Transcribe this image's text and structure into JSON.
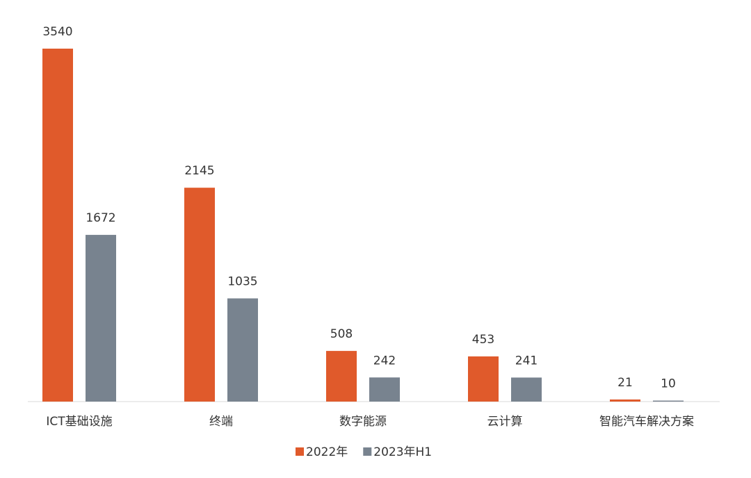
{
  "chart_data": {
    "type": "bar",
    "categories": [
      "ICT基础设施",
      "终端",
      "数字能源",
      "云计算",
      "智能汽车解决方案"
    ],
    "series": [
      {
        "name": "2022年",
        "color": "#e05a2b",
        "values": [
          3540,
          2145,
          508,
          453,
          21
        ]
      },
      {
        "name": "2023年H1",
        "color": "#78838f",
        "values": [
          1672,
          1035,
          242,
          241,
          10
        ]
      }
    ],
    "ylim": [
      0,
      3540
    ]
  }
}
